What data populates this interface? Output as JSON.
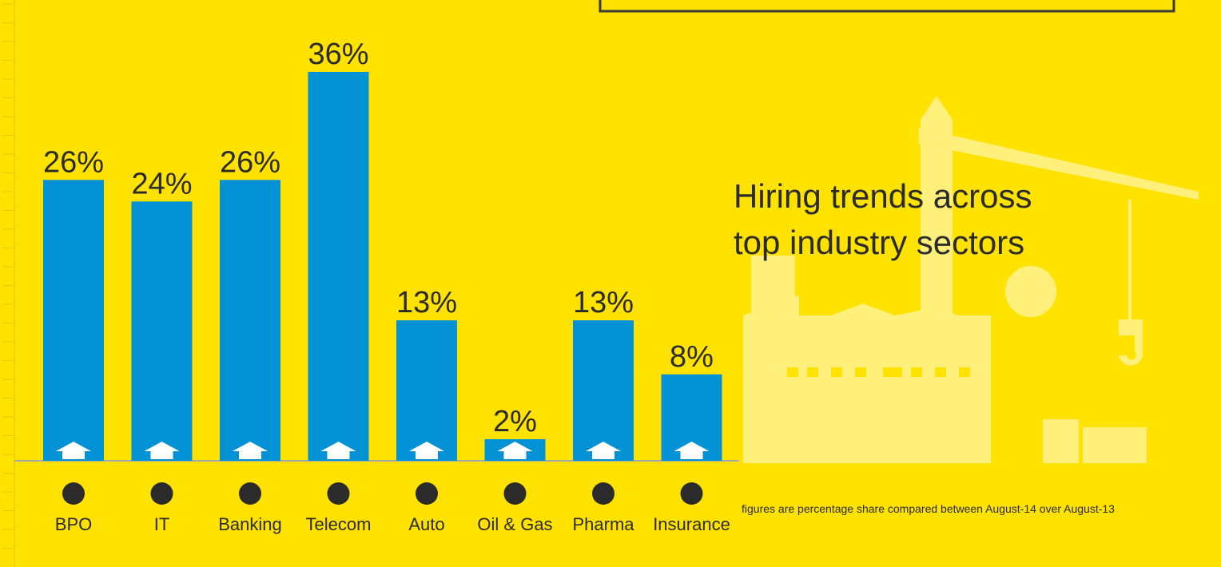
{
  "chart_data": {
    "type": "bar",
    "title": "Hiring trends across top industry sectors",
    "note": "figures are percentage share compared between August-14 over August-13",
    "categories": [
      "BPO",
      "IT",
      "Banking",
      "Telecom",
      "Auto",
      "Oil & Gas",
      "Pharma",
      "Insurance"
    ],
    "values": [
      26,
      24,
      26,
      36,
      13,
      2,
      13,
      8
    ],
    "value_labels": [
      "26%",
      "24%",
      "26%",
      "36%",
      "13%",
      "2%",
      "13%",
      "8%"
    ],
    "color": "#0492d6"
  }
}
